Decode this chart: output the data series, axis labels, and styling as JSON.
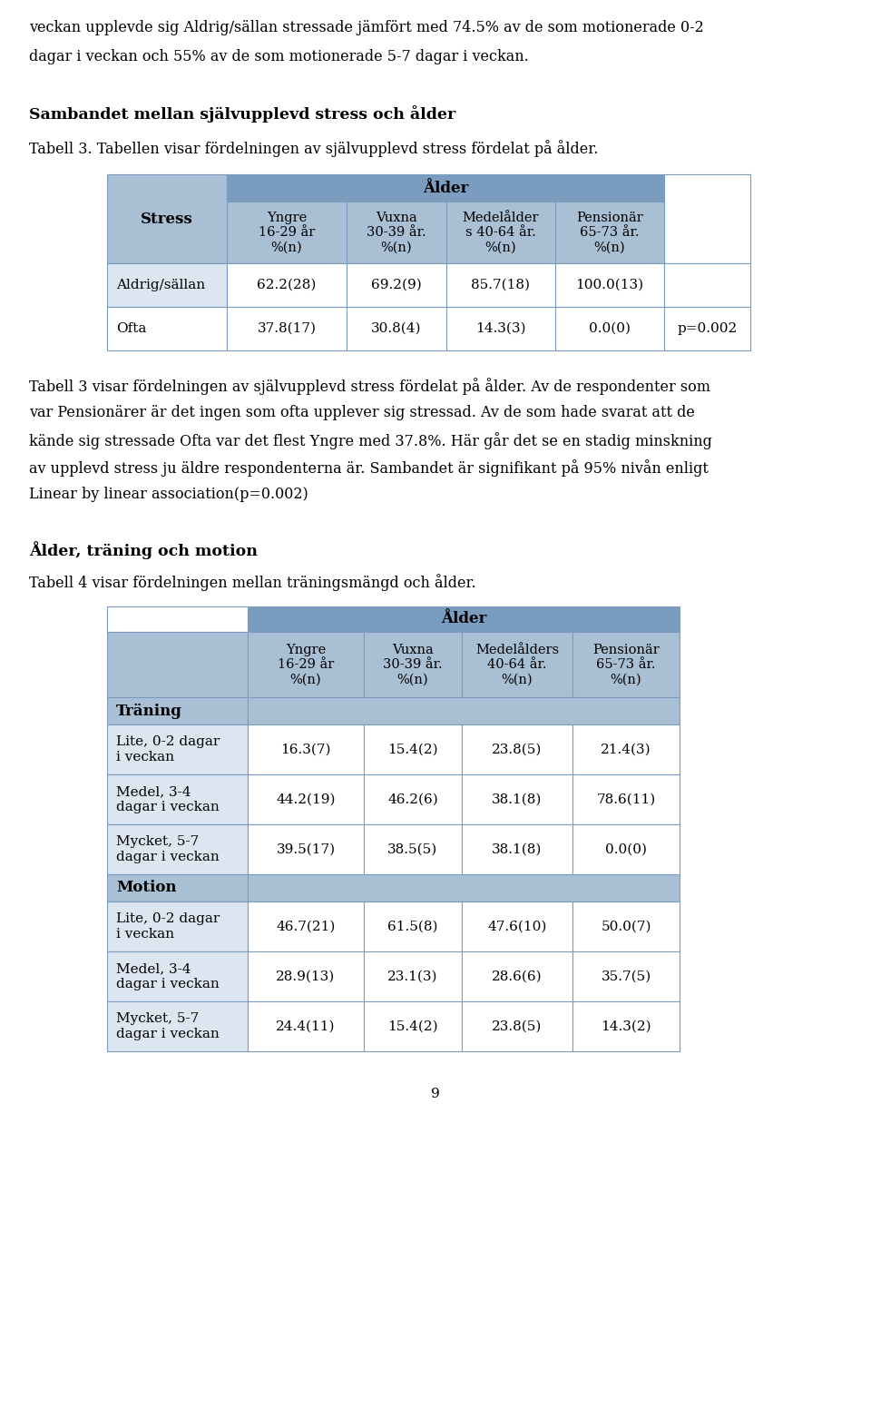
{
  "page_text_top": [
    "veckan upplevde sig Aldrig/sällan stressade jämfört med 74.5% av de som motionerade 0-2",
    "dagar i veckan och 55% av de som motionerade 5-7 dagar i veckan."
  ],
  "section1_heading": "Sambandet mellan självupplevd stress och ålder",
  "section1_intro": "Tabell 3. Tabellen visar fördelningen av självupplevd stress fördelat på ålder.",
  "table1": {
    "header_span": "Ålder",
    "col_headers": [
      "Yngre\n16-29 år\n%(n)",
      "Vuxna\n30-39 år.\n%(n)",
      "Medelålder\ns 40-64 år.\n%(n)",
      "Pensionär\n65-73 år.\n%(n)"
    ],
    "row_header": "Stress",
    "rows": [
      {
        "label": "Aldrig/sällan",
        "values": [
          "62.2(28)",
          "69.2(9)",
          "85.7(18)",
          "100.0(13)"
        ],
        "p": ""
      },
      {
        "label": "Ofta",
        "values": [
          "37.8(17)",
          "30.8(4)",
          "14.3(3)",
          "0.0(0)"
        ],
        "p": "p=0.002"
      }
    ]
  },
  "section1_body": [
    "Tabell 3 visar fördelningen av självupplevd stress fördelat på ålder. Av de respondenter som",
    "var Pensionärer är det ingen som ofta upplever sig stressad. Av de som hade svarat att de",
    "kände sig stressade Ofta var det flest Yngre med 37.8%. Här går det se en stadig minskning",
    "av upplevd stress ju äldre respondenterna är. Sambandet är signifikant på 95% nivån enligt",
    "Linear by linear association(p=0.002)"
  ],
  "section2_heading": "Ålder, träning och motion",
  "section2_intro": "Tabell 4 visar fördelningen mellan träningsmängd och ålder.",
  "table2": {
    "header_span": "Ålder",
    "col_headers": [
      "Yngre\n16-29 år\n%(n)",
      "Vuxna\n30-39 år.\n%(n)",
      "Medelålders\n40-64 år.\n%(n)",
      "Pensionär\n65-73 år.\n%(n)"
    ],
    "sections": [
      {
        "section_label": "Träning",
        "rows": [
          {
            "label": "Lite, 0-2 dagar\ni veckan",
            "values": [
              "16.3(7)",
              "15.4(2)",
              "23.8(5)",
              "21.4(3)"
            ]
          },
          {
            "label": "Medel, 3-4\ndagar i veckan",
            "values": [
              "44.2(19)",
              "46.2(6)",
              "38.1(8)",
              "78.6(11)"
            ]
          },
          {
            "label": "Mycket, 5-7\ndagar i veckan",
            "values": [
              "39.5(17)",
              "38.5(5)",
              "38.1(8)",
              "0.0(0)"
            ]
          }
        ]
      },
      {
        "section_label": "Motion",
        "rows": [
          {
            "label": "Lite, 0-2 dagar\ni veckan",
            "values": [
              "46.7(21)",
              "61.5(8)",
              "47.6(10)",
              "50.0(7)"
            ]
          },
          {
            "label": "Medel, 3-4\ndagar i veckan",
            "values": [
              "28.9(13)",
              "23.1(3)",
              "28.6(6)",
              "35.7(5)"
            ]
          },
          {
            "label": "Mycket, 5-7\ndagar i veckan",
            "values": [
              "24.4(11)",
              "15.4(2)",
              "23.8(5)",
              "14.3(2)"
            ]
          }
        ]
      }
    ]
  },
  "page_number": "9",
  "header_bg": "#a8bfd4",
  "header_bg_dark": "#7a9dbf",
  "cell_bg_white": "#ffffff",
  "cell_bg_light": "#dce6f0",
  "border_color": "#7a9dbf",
  "text_color": "#000000"
}
